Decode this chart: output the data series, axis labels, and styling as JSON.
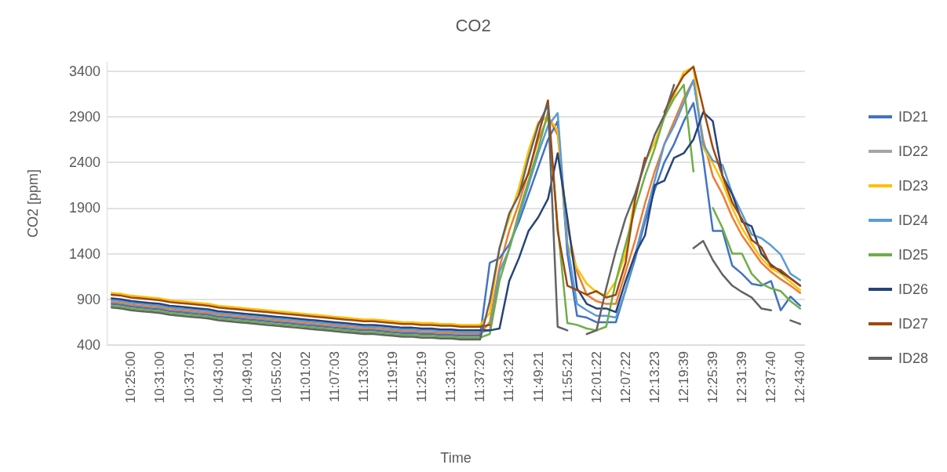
{
  "chart_data": {
    "type": "line",
    "title": "CO2",
    "xlabel": "Time",
    "ylabel": "CO2 [ppm]",
    "ylim": [
      400,
      3500
    ],
    "yticks": [
      400,
      900,
      1400,
      1900,
      2400,
      2900,
      3400
    ],
    "grid": "y",
    "legend": "right",
    "marker": "none",
    "line_style": "solid",
    "categories": [
      null,
      null,
      "10:25:00",
      null,
      null,
      "10:31:00",
      null,
      null,
      "10:37:01",
      null,
      null,
      "10:43:01",
      null,
      null,
      "10:49:01",
      null,
      null,
      "10:55:02",
      null,
      null,
      "11:01:02",
      null,
      null,
      "11:07:03",
      null,
      null,
      "11:13:03",
      null,
      null,
      "11:19:19",
      null,
      null,
      "11:25:19",
      null,
      null,
      "11:31:20",
      null,
      null,
      "11:37:20",
      null,
      null,
      "11:43:21",
      null,
      null,
      "11:49:21",
      null,
      null,
      "11:55:21",
      null,
      null,
      "12:01:22",
      null,
      null,
      "12:07:22",
      null,
      null,
      "12:13:23",
      null,
      null,
      "12:19:39",
      null,
      null,
      "12:25:39",
      null,
      null,
      "12:31:39",
      null,
      null,
      "12:37:40",
      null,
      null,
      "12:43:40"
    ],
    "series": [
      {
        "color": "#ed7d31",
        "values": [
          870,
          860,
          840,
          830,
          820,
          810,
          790,
          780,
          770,
          760,
          750,
          730,
          720,
          710,
          700,
          690,
          680,
          670,
          660,
          650,
          640,
          630,
          620,
          610,
          600,
          590,
          580,
          580,
          570,
          560,
          550,
          550,
          540,
          540,
          530,
          530,
          520,
          520,
          520,
          650,
          1250,
          1650,
          1950,
          2300,
          2650,
          2900,
          2700,
          1700,
          1200,
          950,
          880,
          850,
          850,
          1200,
          1550,
          1950,
          2300,
          2600,
          2850,
          3100,
          3300,
          2650,
          2250,
          2050,
          1800,
          1600,
          1450,
          1300,
          1200,
          1120,
          1050,
          970
        ]
      },
      {
        "name": "ID21",
        "color": "#4472c4",
        "values": [
          850,
          840,
          820,
          810,
          800,
          790,
          770,
          760,
          750,
          740,
          730,
          710,
          700,
          690,
          680,
          670,
          660,
          650,
          640,
          630,
          620,
          610,
          600,
          590,
          580,
          570,
          560,
          560,
          550,
          540,
          530,
          530,
          520,
          520,
          510,
          510,
          500,
          500,
          500,
          1300,
          1350,
          1500,
          1750,
          2050,
          2350,
          2650,
          2850,
          1400,
          720,
          700,
          650,
          650,
          650,
          1000,
          1350,
          1750,
          2100,
          2400,
          2600,
          2850,
          3050,
          2450,
          1650,
          1650,
          1270,
          1180,
          1070,
          1050,
          1100,
          780,
          930,
          830
        ]
      },
      {
        "name": "ID22",
        "color": "#a5a5a5",
        "values": [
          null,
          null,
          null,
          null,
          null,
          null,
          null,
          null,
          null,
          null,
          null,
          null,
          null,
          null,
          null,
          null,
          null,
          null,
          null,
          null,
          null,
          null,
          null,
          null,
          null,
          null,
          null,
          null,
          null,
          null,
          null,
          null,
          null,
          null,
          null,
          null,
          null,
          null,
          null,
          null,
          null,
          null,
          null,
          null,
          null,
          null,
          null,
          null,
          null,
          null,
          null,
          null,
          null,
          null,
          null,
          null,
          null,
          null,
          null,
          null,
          null,
          null,
          null,
          null,
          null,
          null,
          null,
          null,
          null,
          null,
          null,
          null
        ]
      },
      {
        "name": "ID23",
        "color": "#ffc000",
        "values": [
          970,
          960,
          940,
          930,
          920,
          910,
          890,
          880,
          870,
          860,
          850,
          830,
          820,
          810,
          800,
          790,
          780,
          770,
          760,
          750,
          740,
          730,
          720,
          710,
          700,
          690,
          680,
          680,
          670,
          660,
          650,
          650,
          640,
          640,
          630,
          630,
          620,
          620,
          620,
          750,
          1460,
          1790,
          2120,
          2530,
          2840,
          2900,
          2750,
          1510,
          1240,
          1070,
          980,
          940,
          1100,
          1400,
          2050,
          2400,
          2620,
          2890,
          3140,
          3390,
          3440,
          2560,
          2390,
          2180,
          1900,
          1680,
          1510,
          1350,
          1240,
          1180,
          1090,
          1000
        ]
      },
      {
        "name": "ID24",
        "color": "#5b9bd5",
        "values": [
          890,
          880,
          860,
          850,
          840,
          830,
          810,
          800,
          790,
          780,
          770,
          750,
          740,
          730,
          720,
          710,
          700,
          690,
          680,
          670,
          660,
          650,
          640,
          630,
          620,
          610,
          600,
          600,
          590,
          580,
          570,
          570,
          560,
          560,
          550,
          550,
          540,
          540,
          540,
          560,
          1200,
          1450,
          1800,
          2150,
          2500,
          2800,
          2940,
          1500,
          850,
          780,
          720,
          720,
          700,
          1000,
          1400,
          1800,
          2200,
          2600,
          2800,
          3050,
          3300,
          2600,
          2420,
          2370,
          2060,
          1840,
          1610,
          1570,
          1490,
          1390,
          1180,
          1110
        ]
      },
      {
        "name": "ID25",
        "color": "#70ad47",
        "values": [
          830,
          820,
          800,
          790,
          780,
          770,
          750,
          740,
          730,
          720,
          710,
          690,
          680,
          670,
          660,
          650,
          640,
          630,
          620,
          610,
          600,
          590,
          580,
          570,
          560,
          550,
          540,
          540,
          530,
          520,
          510,
          510,
          500,
          500,
          490,
          490,
          480,
          480,
          480,
          520,
          1100,
          1450,
          1850,
          2200,
          2550,
          2950,
          1700,
          640,
          620,
          580,
          560,
          600,
          1100,
          1500,
          1900,
          2250,
          2550,
          2900,
          3100,
          3250,
          2300,
          null,
          1900,
          1680,
          1400,
          1400,
          1180,
          1070,
          1020,
          990,
          880,
          800
        ]
      },
      {
        "name": "ID26",
        "color": "#264478",
        "values": [
          910,
          900,
          880,
          870,
          860,
          850,
          830,
          820,
          810,
          800,
          790,
          770,
          760,
          750,
          740,
          730,
          720,
          710,
          700,
          690,
          680,
          670,
          660,
          650,
          640,
          630,
          620,
          620,
          610,
          600,
          590,
          590,
          580,
          580,
          570,
          570,
          560,
          560,
          560,
          560,
          580,
          1100,
          1350,
          1650,
          1800,
          2000,
          2500,
          1790,
          1020,
          850,
          800,
          800,
          760,
          1100,
          1400,
          1600,
          2150,
          2200,
          2450,
          2500,
          2650,
          2950,
          2850,
          2250,
          2050,
          1750,
          1700,
          1400,
          1280,
          1200,
          1130,
          1050
        ]
      },
      {
        "name": "ID27",
        "color": "#9e480e",
        "values": [
          950,
          940,
          920,
          910,
          900,
          890,
          870,
          860,
          850,
          840,
          830,
          810,
          800,
          790,
          780,
          770,
          760,
          750,
          740,
          730,
          720,
          710,
          700,
          690,
          680,
          670,
          660,
          660,
          650,
          640,
          630,
          630,
          620,
          620,
          610,
          610,
          600,
          600,
          600,
          620,
          null,
          null,
          2050,
          2280,
          2700,
          3080,
          1650,
          1050,
          1000,
          950,
          990,
          920,
          950,
          1300,
          2000,
          2450,
          null,
          2950,
          3170,
          3350,
          3450,
          3000,
          2560,
          2250,
          1960,
          1780,
          1550,
          1470,
          1260,
          1220,
          1130,
          1050
        ]
      },
      {
        "name": "ID28",
        "color": "#636363",
        "values": [
          810,
          800,
          780,
          770,
          760,
          750,
          730,
          720,
          710,
          700,
          690,
          670,
          660,
          650,
          640,
          630,
          620,
          610,
          600,
          590,
          580,
          570,
          560,
          550,
          540,
          530,
          520,
          520,
          510,
          500,
          490,
          490,
          480,
          480,
          470,
          470,
          460,
          460,
          460,
          880,
          1460,
          1840,
          2040,
          2450,
          2810,
          3030,
          600,
          560,
          null,
          520,
          560,
          1020,
          1430,
          1790,
          2060,
          2390,
          2700,
          2920,
          3250,
          null,
          1460,
          1540,
          1330,
          1170,
          1050,
          980,
          920,
          800,
          780,
          null,
          670,
          630
        ]
      }
    ]
  }
}
